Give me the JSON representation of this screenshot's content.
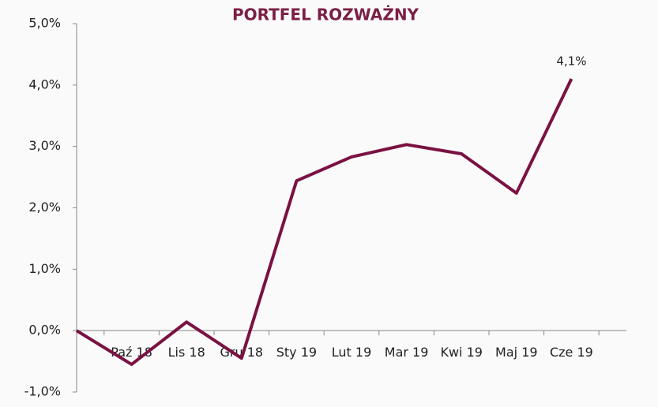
{
  "chart_data": {
    "type": "line",
    "title": "PORTFEL ROZWAŻNY",
    "categories": [
      null,
      "Paź 18",
      "Lis 18",
      "Gru 18",
      "Sty 19",
      "Lut 19",
      "Mar 19",
      "Kwi 19",
      "Maj 19",
      "Cze 19"
    ],
    "series": [
      {
        "name": "PORTFEL ROZWAŻNY",
        "color": "#7a1242",
        "values": [
          0,
          -0.55,
          0.14,
          -0.45,
          2.44,
          2.83,
          3.03,
          2.88,
          2.24,
          4.1
        ],
        "value_labels": [
          null,
          null,
          null,
          null,
          null,
          null,
          null,
          null,
          null,
          "4,1%"
        ]
      }
    ],
    "ylim": [
      -1,
      5
    ],
    "yticks": [
      {
        "value": -1,
        "label": "-1,0%"
      },
      {
        "value": 0,
        "label": "0,0%"
      },
      {
        "value": 1,
        "label": "1,0%"
      },
      {
        "value": 2,
        "label": "2,0%"
      },
      {
        "value": 3,
        "label": "3,0%"
      },
      {
        "value": 4,
        "label": "4,0%"
      },
      {
        "value": 5,
        "label": "5,0%"
      }
    ],
    "grid": false
  }
}
